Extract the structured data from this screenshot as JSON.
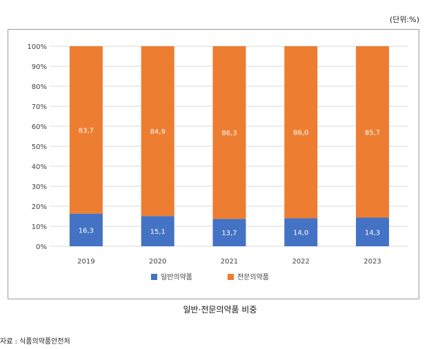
{
  "unit_label": "(단위:%)",
  "caption": "일반·전문의약품 비중",
  "source": "자료 : 식품의약품안전처",
  "colors": {
    "general": "#4472c4",
    "professional": "#ed7d31",
    "grid": "#d9d9d9",
    "text": "#404040"
  },
  "chart_data": {
    "type": "bar",
    "stacked": true,
    "categories": [
      "2019",
      "2020",
      "2021",
      "2022",
      "2023"
    ],
    "series": [
      {
        "name": "일반의약품",
        "values": [
          16.3,
          15.1,
          13.7,
          14.0,
          14.3
        ],
        "labels": [
          "16,3",
          "15,1",
          "13,7",
          "14,0",
          "14,3"
        ]
      },
      {
        "name": "전문의약품",
        "values": [
          83.7,
          84.9,
          86.3,
          86.0,
          85.7
        ],
        "labels": [
          "83,7",
          "84,9",
          "86,3",
          "86,0",
          "85,7"
        ]
      }
    ],
    "yticks": [
      "0%",
      "10%",
      "20%",
      "30%",
      "40%",
      "50%",
      "60%",
      "70%",
      "80%",
      "90%",
      "100%"
    ],
    "ylim": [
      0,
      100
    ],
    "grid": true,
    "legend": "bottom"
  }
}
